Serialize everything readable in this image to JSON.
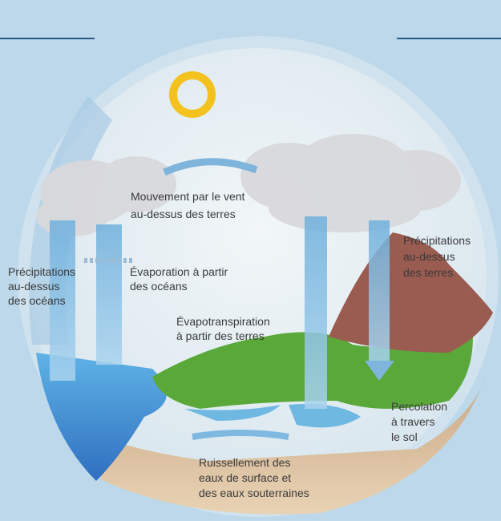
{
  "labels": [
    {
      "lines": [
        "Mouvement par le vent",
        "au-dessus des terres"
      ]
    },
    {
      "lines": [
        "Précipitations",
        "au-dessus",
        "des océans"
      ]
    },
    {
      "lines": [
        "Évaporation à partir",
        "des océans"
      ]
    },
    {
      "lines": [
        "Évapotranspiration",
        "à partir des terres"
      ]
    },
    {
      "lines": [
        "Précipitations",
        "au-dessus",
        "des terres"
      ]
    },
    {
      "lines": [
        "Percolation",
        "à travers",
        "le sol"
      ]
    },
    {
      "lines": [
        "Ruissellement des",
        "eaux de surface et",
        "des eaux souterraines"
      ]
    }
  ]
}
